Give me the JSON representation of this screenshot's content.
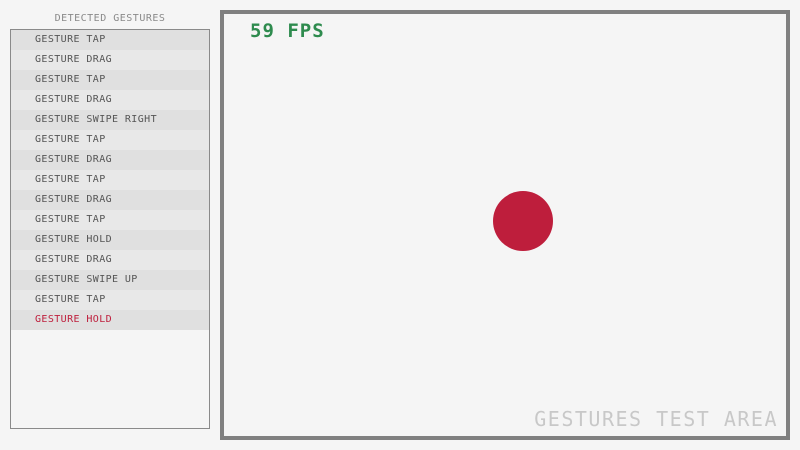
{
  "sidebar": {
    "title": "DETECTED GESTURES",
    "items": [
      "GESTURE TAP",
      "GESTURE DRAG",
      "GESTURE TAP",
      "GESTURE DRAG",
      "GESTURE SWIPE RIGHT",
      "GESTURE TAP",
      "GESTURE DRAG",
      "GESTURE TAP",
      "GESTURE DRAG",
      "GESTURE TAP",
      "GESTURE HOLD",
      "GESTURE DRAG",
      "GESTURE SWIPE UP",
      "GESTURE TAP",
      "GESTURE HOLD"
    ]
  },
  "test_area": {
    "fps": "59 FPS",
    "label": "GESTURES TEST AREA"
  },
  "colors": {
    "background": "#f5f5f5",
    "row_dark": "#e0e0e0",
    "row_light": "#e8e8e8",
    "border": "#808080",
    "fps_text": "#2e8b4e",
    "accent": "#be1e3c",
    "label_text": "#c8c8c8"
  }
}
